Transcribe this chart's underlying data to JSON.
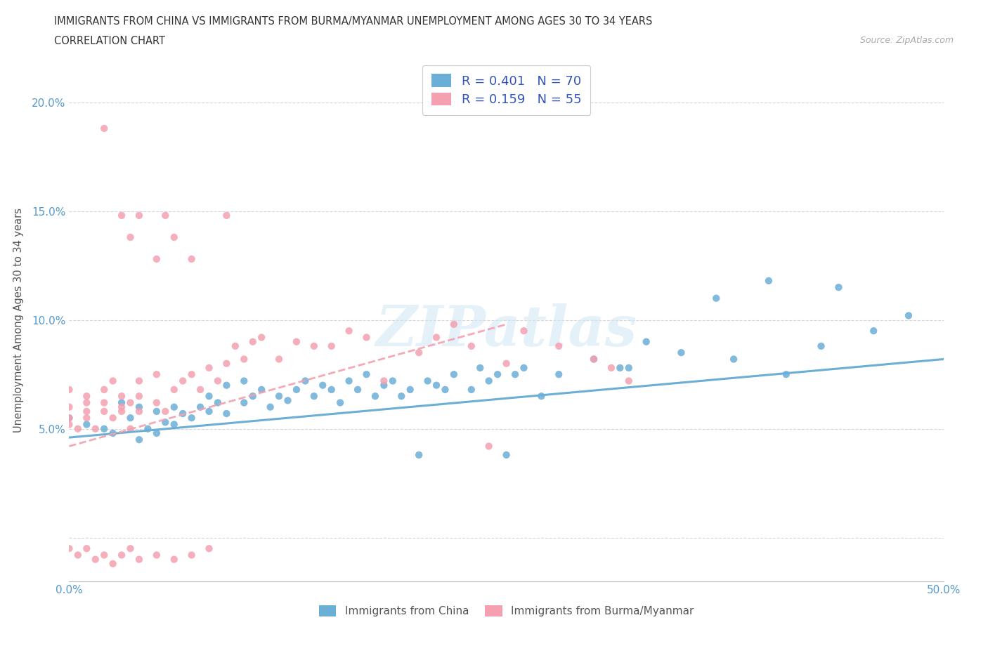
{
  "title_line1": "IMMIGRANTS FROM CHINA VS IMMIGRANTS FROM BURMA/MYANMAR UNEMPLOYMENT AMONG AGES 30 TO 34 YEARS",
  "title_line2": "CORRELATION CHART",
  "source": "Source: ZipAtlas.com",
  "ylabel": "Unemployment Among Ages 30 to 34 years",
  "xlim": [
    0.0,
    0.5
  ],
  "ylim": [
    -0.02,
    0.22
  ],
  "xticks": [
    0.0,
    0.05,
    0.1,
    0.15,
    0.2,
    0.25,
    0.3,
    0.35,
    0.4,
    0.45,
    0.5
  ],
  "yticks": [
    0.0,
    0.05,
    0.1,
    0.15,
    0.2
  ],
  "china_color": "#6baed6",
  "burma_color": "#f4a0b0",
  "china_R": 0.401,
  "china_N": 70,
  "burma_R": 0.159,
  "burma_N": 55,
  "watermark_text": "ZIPatlas",
  "legend_label_china": "Immigrants from China",
  "legend_label_burma": "Immigrants from Burma/Myanmar",
  "china_trend_x": [
    0.0,
    0.5
  ],
  "china_trend_y": [
    0.046,
    0.082
  ],
  "burma_trend_x": [
    0.0,
    0.25
  ],
  "burma_trend_y": [
    0.042,
    0.098
  ],
  "china_x": [
    0.0,
    0.01,
    0.02,
    0.025,
    0.03,
    0.035,
    0.04,
    0.04,
    0.045,
    0.05,
    0.05,
    0.055,
    0.06,
    0.06,
    0.065,
    0.07,
    0.075,
    0.08,
    0.08,
    0.085,
    0.09,
    0.09,
    0.1,
    0.1,
    0.105,
    0.11,
    0.115,
    0.12,
    0.125,
    0.13,
    0.135,
    0.14,
    0.145,
    0.15,
    0.155,
    0.16,
    0.165,
    0.17,
    0.175,
    0.18,
    0.185,
    0.19,
    0.195,
    0.2,
    0.205,
    0.21,
    0.215,
    0.22,
    0.23,
    0.235,
    0.24,
    0.245,
    0.25,
    0.255,
    0.26,
    0.27,
    0.28,
    0.3,
    0.315,
    0.32,
    0.33,
    0.35,
    0.37,
    0.38,
    0.4,
    0.41,
    0.43,
    0.44,
    0.46,
    0.48
  ],
  "china_y": [
    0.055,
    0.052,
    0.05,
    0.048,
    0.062,
    0.055,
    0.045,
    0.06,
    0.05,
    0.048,
    0.058,
    0.053,
    0.06,
    0.052,
    0.057,
    0.055,
    0.06,
    0.058,
    0.065,
    0.062,
    0.057,
    0.07,
    0.062,
    0.072,
    0.065,
    0.068,
    0.06,
    0.065,
    0.063,
    0.068,
    0.072,
    0.065,
    0.07,
    0.068,
    0.062,
    0.072,
    0.068,
    0.075,
    0.065,
    0.07,
    0.072,
    0.065,
    0.068,
    0.038,
    0.072,
    0.07,
    0.068,
    0.075,
    0.068,
    0.078,
    0.072,
    0.075,
    0.038,
    0.075,
    0.078,
    0.065,
    0.075,
    0.082,
    0.078,
    0.078,
    0.09,
    0.085,
    0.11,
    0.082,
    0.118,
    0.075,
    0.088,
    0.115,
    0.095,
    0.102
  ],
  "burma_x": [
    0.0,
    0.0,
    0.0,
    0.0,
    0.005,
    0.01,
    0.01,
    0.01,
    0.01,
    0.015,
    0.02,
    0.02,
    0.02,
    0.025,
    0.025,
    0.03,
    0.03,
    0.03,
    0.035,
    0.035,
    0.04,
    0.04,
    0.04,
    0.05,
    0.05,
    0.055,
    0.06,
    0.065,
    0.07,
    0.075,
    0.08,
    0.085,
    0.09,
    0.095,
    0.1,
    0.105,
    0.11,
    0.12,
    0.13,
    0.14,
    0.15,
    0.16,
    0.17,
    0.18,
    0.2,
    0.21,
    0.22,
    0.23,
    0.24,
    0.25,
    0.26,
    0.28,
    0.3,
    0.31,
    0.32
  ],
  "burma_y": [
    0.055,
    0.052,
    0.06,
    0.068,
    0.05,
    0.055,
    0.062,
    0.058,
    0.065,
    0.05,
    0.058,
    0.062,
    0.068,
    0.055,
    0.072,
    0.058,
    0.065,
    0.06,
    0.05,
    0.062,
    0.058,
    0.065,
    0.072,
    0.062,
    0.075,
    0.058,
    0.068,
    0.072,
    0.075,
    0.068,
    0.078,
    0.072,
    0.08,
    0.088,
    0.082,
    0.09,
    0.092,
    0.082,
    0.09,
    0.088,
    0.088,
    0.095,
    0.092,
    0.072,
    0.085,
    0.092,
    0.098,
    0.088,
    0.042,
    0.08,
    0.095,
    0.088,
    0.082,
    0.078,
    0.072
  ],
  "burma_outliers_x": [
    0.02,
    0.03,
    0.035,
    0.04,
    0.05,
    0.055,
    0.06,
    0.07,
    0.09
  ],
  "burma_outliers_y": [
    0.188,
    0.148,
    0.138,
    0.148,
    0.128,
    0.148,
    0.138,
    0.128,
    0.148
  ],
  "burma_low_x": [
    0.0,
    0.005,
    0.01,
    0.015,
    0.02,
    0.025,
    0.03,
    0.035,
    0.04,
    0.05,
    0.06,
    0.07,
    0.08
  ],
  "burma_low_y": [
    -0.005,
    -0.008,
    -0.005,
    -0.01,
    -0.008,
    -0.012,
    -0.008,
    -0.005,
    -0.01,
    -0.008,
    -0.01,
    -0.008,
    -0.005
  ]
}
